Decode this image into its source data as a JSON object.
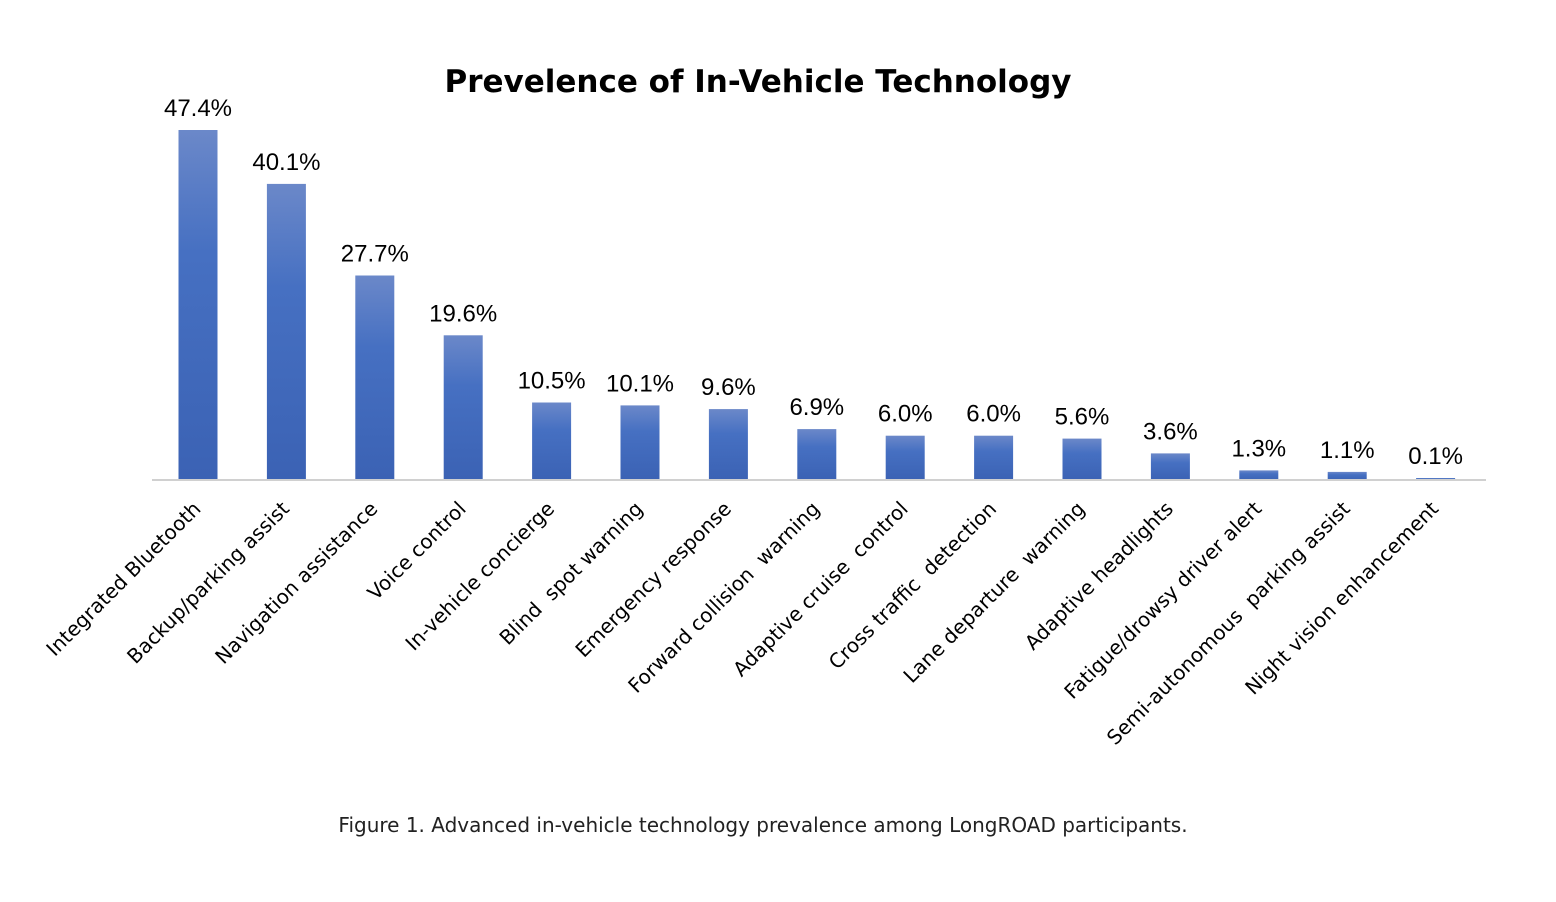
{
  "chart_data": {
    "type": "bar",
    "title": "Prevelence of In-Vehicle Technology",
    "xlabel": "",
    "ylabel": "",
    "ylim": [
      0,
      47.4
    ],
    "grid": false,
    "legend": "none",
    "categories": [
      "Integrated Bluetooth",
      "Backup/parking assist",
      "Navigation assistance",
      "Voice control",
      "In-vehicle concierge",
      "Blind  spot warning",
      "Emergency response",
      "Forward collision  warning",
      "Adaptive cruise  control",
      "Cross traffic  detection",
      "Lane departure  warning",
      "Adaptive headlights",
      "Fatigue/drowsy driver alert",
      "Semi-autonomous  parking assist",
      "Night vision enhancement"
    ],
    "values": [
      47.4,
      40.1,
      27.7,
      19.6,
      10.5,
      10.1,
      9.6,
      6.9,
      6.0,
      6.0,
      5.6,
      3.6,
      1.3,
      1.1,
      0.1
    ],
    "data_labels": [
      "47.4%",
      "40.1%",
      "27.7%",
      "19.6%",
      "10.5%",
      "10.1%",
      "9.6%",
      "6.9%",
      "6.0%",
      "6.0%",
      "5.6%",
      "3.6%",
      "1.3%",
      "1.1%",
      "0.1%"
    ],
    "colors": {
      "bar_top": "#6b88c9",
      "bar_bottom": "#3b62b4",
      "axis": "#d0d0d0"
    }
  },
  "caption": "Figure 1. Advanced in-vehicle technology prevalence among LongROAD participants."
}
